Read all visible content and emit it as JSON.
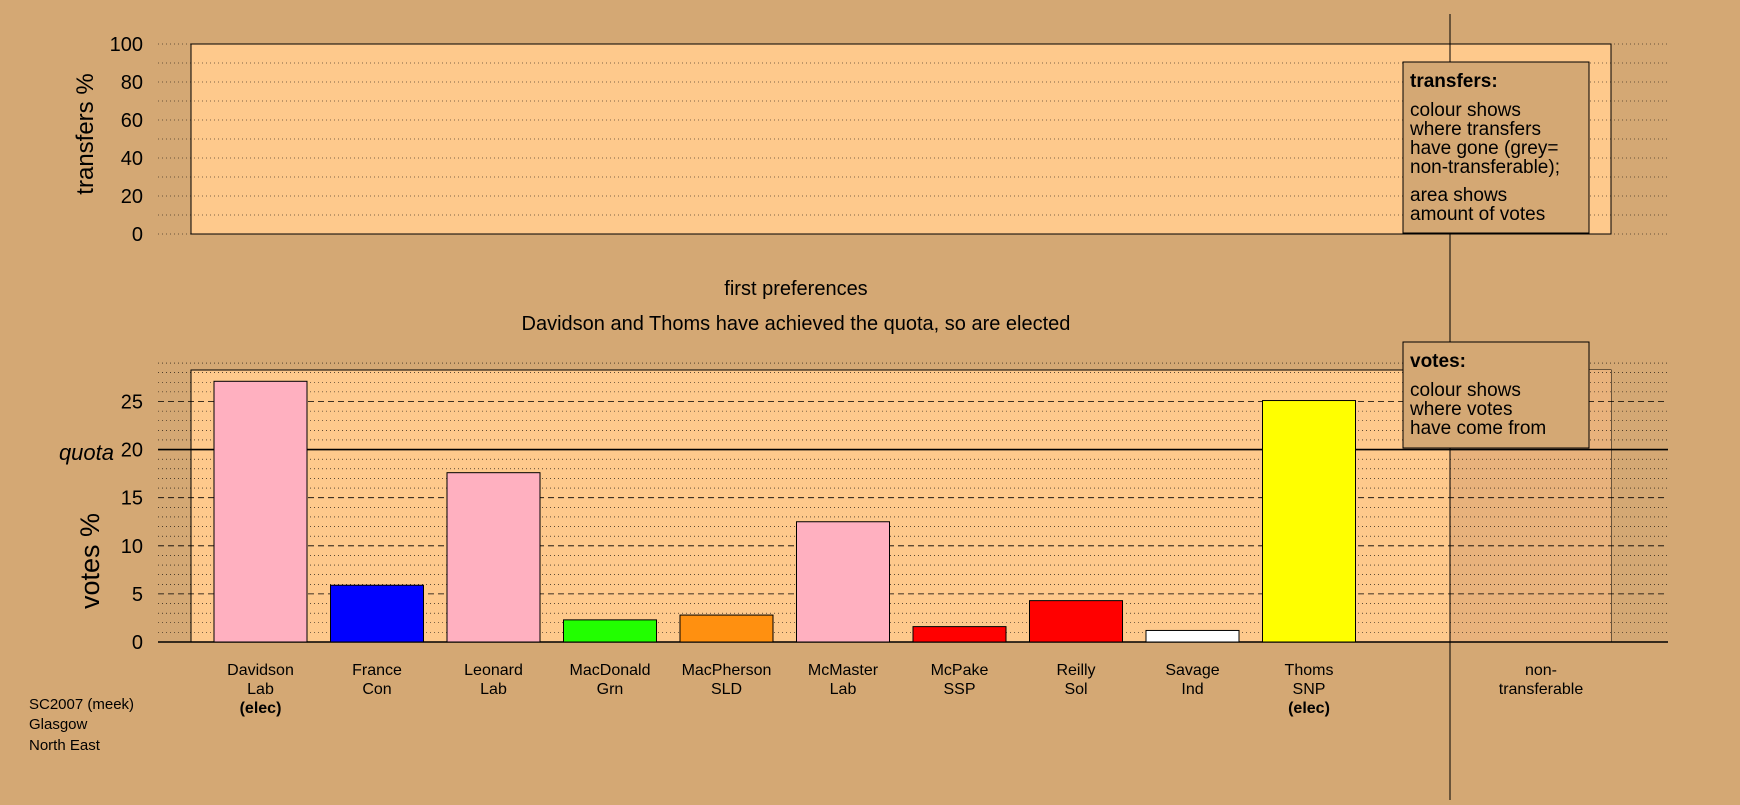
{
  "colors": {
    "background": "#d4a874",
    "plot_area": "#fec98c",
    "plot_area_shaded": "#e8b27c",
    "legend_box": "#d4a874"
  },
  "top_panel": {
    "ylabel": "transfers %",
    "ylim": [
      0,
      100
    ],
    "yticks": [
      "0",
      "20",
      "40",
      "60",
      "80",
      "100"
    ]
  },
  "titles": {
    "line1": "first preferences",
    "line2": "Davidson and Thoms have achieved the quota, so are elected"
  },
  "transfers_legend": {
    "heading": "transfers:",
    "lines": [
      "colour shows",
      "where transfers",
      "have gone (grey=",
      "non-transferable);"
    ],
    "lines2": [
      "area shows",
      "amount of votes"
    ]
  },
  "votes_legend": {
    "heading": "votes:",
    "lines": [
      "colour shows",
      "where votes",
      "have come from"
    ]
  },
  "quota_label": "quota",
  "footer": {
    "lines": [
      "SC2007 (meek)",
      "Glasgow",
      "North East"
    ]
  },
  "chart_data": {
    "type": "bar",
    "ylabel": "votes %",
    "ylim": [
      0,
      29
    ],
    "yticks": [
      "0",
      "5",
      "10",
      "15",
      "20",
      "25"
    ],
    "quota": 20,
    "categories": [
      {
        "name": "Davidson",
        "party": "Lab",
        "elected": "(elec)",
        "value": 27.1,
        "color": "#ffb0c0"
      },
      {
        "name": "France",
        "party": "Con",
        "elected": "",
        "value": 5.9,
        "color": "#0000ff"
      },
      {
        "name": "Leonard",
        "party": "Lab",
        "elected": "",
        "value": 17.6,
        "color": "#ffb0c0"
      },
      {
        "name": "MacDonald",
        "party": "Grn",
        "elected": "",
        "value": 2.3,
        "color": "#22ff00"
      },
      {
        "name": "MacPherson",
        "party": "SLD",
        "elected": "",
        "value": 2.8,
        "color": "#ff9010"
      },
      {
        "name": "McMaster",
        "party": "Lab",
        "elected": "",
        "value": 12.5,
        "color": "#ffb0c0"
      },
      {
        "name": "McPake",
        "party": "SSP",
        "elected": "",
        "value": 1.6,
        "color": "#ff0000"
      },
      {
        "name": "Reilly",
        "party": "Sol",
        "elected": "",
        "value": 4.3,
        "color": "#ff0000"
      },
      {
        "name": "Savage",
        "party": "Ind",
        "elected": "",
        "value": 1.2,
        "color": "#ffffff"
      },
      {
        "name": "Thoms",
        "party": "SNP",
        "elected": "(elec)",
        "value": 25.1,
        "color": "#ffff00"
      }
    ],
    "non_transferable": {
      "label1": "non-",
      "label2": "transferable",
      "value": 0
    }
  }
}
